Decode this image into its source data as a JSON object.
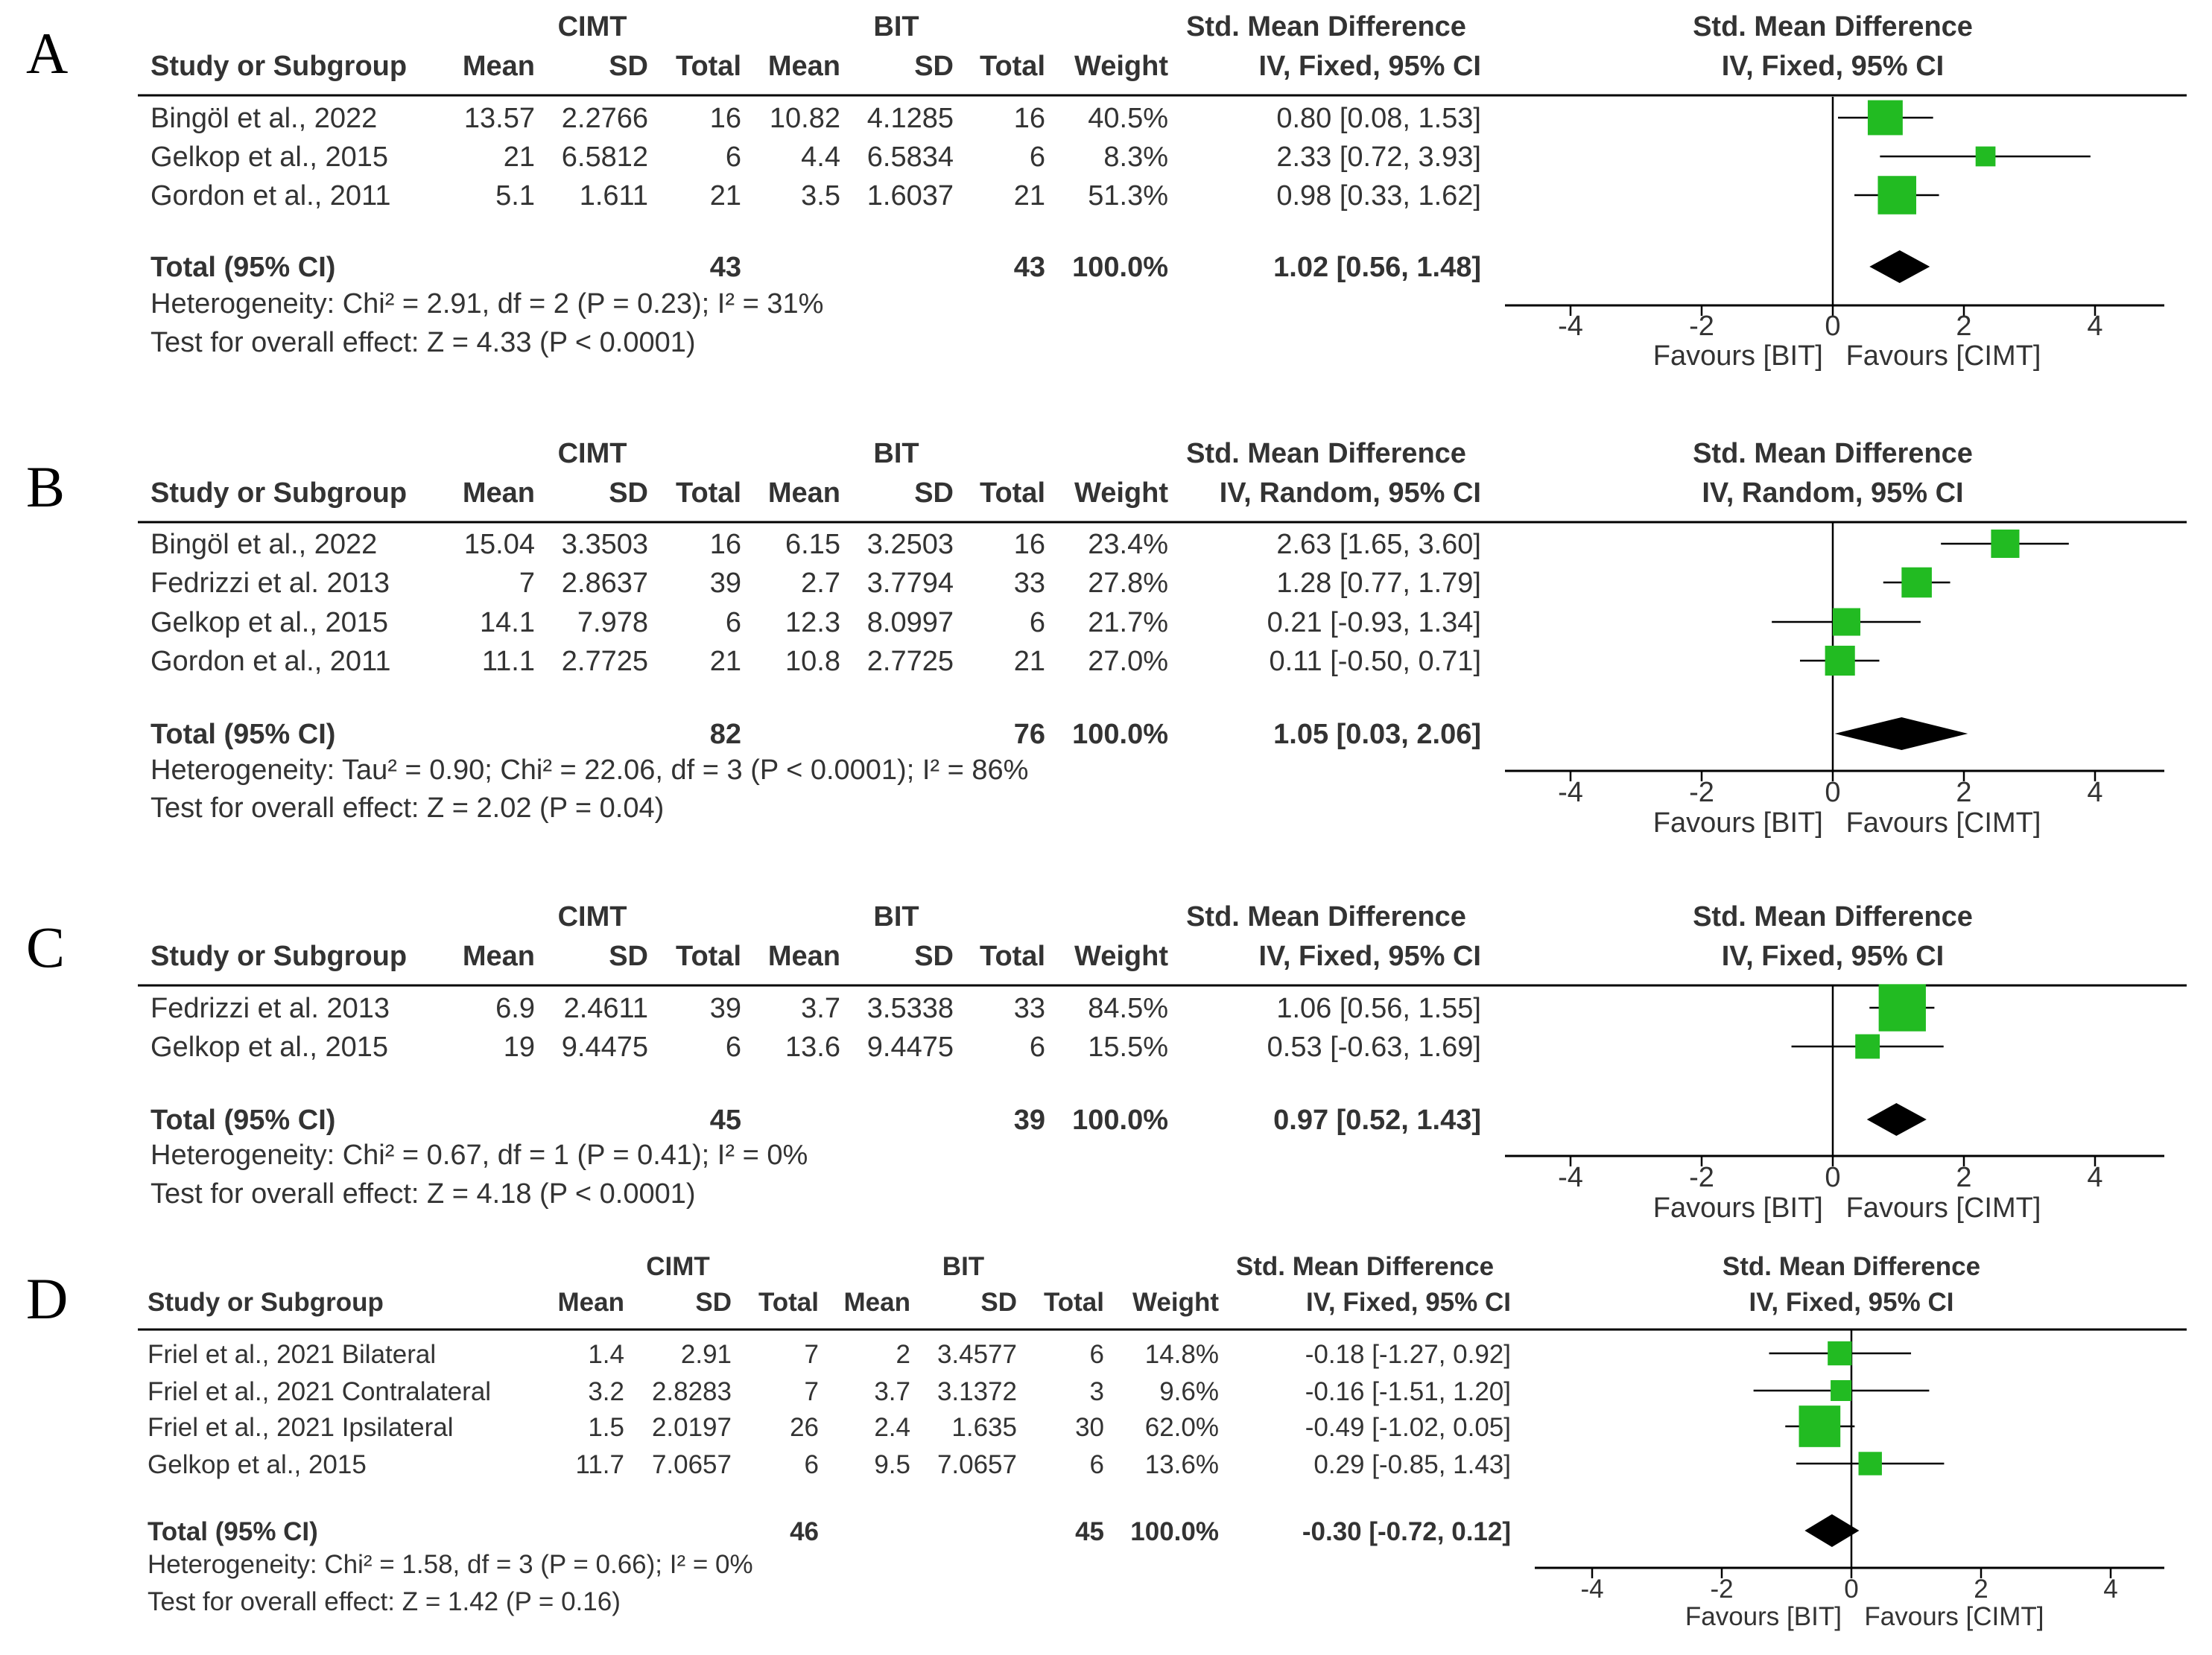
{
  "colors": {
    "text": "#333333",
    "square": "#22bb22",
    "diamond": "#000000",
    "axis": "#000000"
  },
  "headers": {
    "group1": "CIMT",
    "group2": "BIT",
    "effect": "Std. Mean Difference",
    "study": "Study or Subgroup",
    "mean": "Mean",
    "sd": "SD",
    "total": "Total",
    "weight": "Weight"
  },
  "chart_data": [
    {
      "type": "forest",
      "panel": "A",
      "method": "IV, Fixed, 95% CI",
      "studies": [
        {
          "name": "Bingöl et al., 2022",
          "m1": "13.57",
          "sd1": "2.2766",
          "n1": "16",
          "m2": "10.82",
          "sd2": "4.1285",
          "n2": "16",
          "weight": "40.5%",
          "ci_text": "0.80 [0.08, 1.53]",
          "est": 0.8,
          "lo": 0.08,
          "hi": 1.53,
          "w": 40.5
        },
        {
          "name": "Gelkop et al., 2015",
          "m1": "21",
          "sd1": "6.5812",
          "n1": "6",
          "m2": "4.4",
          "sd2": "6.5834",
          "n2": "6",
          "weight": "8.3%",
          "ci_text": "2.33 [0.72, 3.93]",
          "est": 2.33,
          "lo": 0.72,
          "hi": 3.93,
          "w": 8.3
        },
        {
          "name": "Gordon et al., 2011",
          "m1": "5.1",
          "sd1": "1.611",
          "n1": "21",
          "m2": "3.5",
          "sd2": "1.6037",
          "n2": "21",
          "weight": "51.3%",
          "ci_text": "0.98 [0.33, 1.62]",
          "est": 0.98,
          "lo": 0.33,
          "hi": 1.62,
          "w": 51.3
        }
      ],
      "total": {
        "label": "Total (95% CI)",
        "n1": "43",
        "n2": "43",
        "weight": "100.0%",
        "ci_text": "1.02 [0.56, 1.48]",
        "est": 1.02,
        "lo": 0.56,
        "hi": 1.48
      },
      "heterogeneity": "Heterogeneity: Chi² = 2.91, df = 2 (P = 0.23); I² = 31%",
      "overall": "Test for overall effect: Z = 4.33 (P < 0.0001)",
      "axis": {
        "xlim": [
          -5,
          5
        ],
        "ticks": [
          -4,
          -2,
          0,
          2,
          4
        ],
        "tick_labels": [
          "-4",
          "-2",
          "0",
          "2",
          "4"
        ]
      },
      "favours_left": "Favours [BIT]",
      "favours_right": "Favours [CIMT]"
    },
    {
      "type": "forest",
      "panel": "B",
      "method": "IV, Random, 95% CI",
      "studies": [
        {
          "name": "Bingöl et al., 2022",
          "m1": "15.04",
          "sd1": "3.3503",
          "n1": "16",
          "m2": "6.15",
          "sd2": "3.2503",
          "n2": "16",
          "weight": "23.4%",
          "ci_text": "2.63 [1.65, 3.60]",
          "est": 2.63,
          "lo": 1.65,
          "hi": 3.6,
          "w": 23.4
        },
        {
          "name": "Fedrizzi et al. 2013",
          "m1": "7",
          "sd1": "2.8637",
          "n1": "39",
          "m2": "2.7",
          "sd2": "3.7794",
          "n2": "33",
          "weight": "27.8%",
          "ci_text": "1.28 [0.77, 1.79]",
          "est": 1.28,
          "lo": 0.77,
          "hi": 1.79,
          "w": 27.8
        },
        {
          "name": "Gelkop et al., 2015",
          "m1": "14.1",
          "sd1": "7.978",
          "n1": "6",
          "m2": "12.3",
          "sd2": "8.0997",
          "n2": "6",
          "weight": "21.7%",
          "ci_text": "0.21 [-0.93, 1.34]",
          "est": 0.21,
          "lo": -0.93,
          "hi": 1.34,
          "w": 21.7
        },
        {
          "name": "Gordon et al., 2011",
          "m1": "11.1",
          "sd1": "2.7725",
          "n1": "21",
          "m2": "10.8",
          "sd2": "2.7725",
          "n2": "21",
          "weight": "27.0%",
          "ci_text": "0.11 [-0.50, 0.71]",
          "est": 0.11,
          "lo": -0.5,
          "hi": 0.71,
          "w": 27.0
        }
      ],
      "total": {
        "label": "Total (95% CI)",
        "n1": "82",
        "n2": "76",
        "weight": "100.0%",
        "ci_text": "1.05 [0.03, 2.06]",
        "est": 1.05,
        "lo": 0.03,
        "hi": 2.06
      },
      "heterogeneity": "Heterogeneity: Tau² = 0.90; Chi² = 22.06, df = 3 (P < 0.0001); I² = 86%",
      "overall": "Test for overall effect: Z = 2.02 (P = 0.04)",
      "axis": {
        "xlim": [
          -5,
          5
        ],
        "ticks": [
          -4,
          -2,
          0,
          2,
          4
        ],
        "tick_labels": [
          "-4",
          "-2",
          "0",
          "2",
          "4"
        ]
      },
      "favours_left": "Favours [BIT]",
      "favours_right": "Favours [CIMT]"
    },
    {
      "type": "forest",
      "panel": "C",
      "method": "IV, Fixed, 95% CI",
      "studies": [
        {
          "name": "Fedrizzi et al. 2013",
          "m1": "6.9",
          "sd1": "2.4611",
          "n1": "39",
          "m2": "3.7",
          "sd2": "3.5338",
          "n2": "33",
          "weight": "84.5%",
          "ci_text": "1.06 [0.56, 1.55]",
          "est": 1.06,
          "lo": 0.56,
          "hi": 1.55,
          "w": 84.5
        },
        {
          "name": "Gelkop et al., 2015",
          "m1": "19",
          "sd1": "9.4475",
          "n1": "6",
          "m2": "13.6",
          "sd2": "9.4475",
          "n2": "6",
          "weight": "15.5%",
          "ci_text": "0.53 [-0.63, 1.69]",
          "est": 0.53,
          "lo": -0.63,
          "hi": 1.69,
          "w": 15.5
        }
      ],
      "total": {
        "label": "Total (95% CI)",
        "n1": "45",
        "n2": "39",
        "weight": "100.0%",
        "ci_text": "0.97 [0.52, 1.43]",
        "est": 0.97,
        "lo": 0.52,
        "hi": 1.43
      },
      "heterogeneity": "Heterogeneity: Chi² = 0.67, df = 1 (P = 0.41); I² = 0%",
      "overall": "Test for overall effect: Z = 4.18 (P < 0.0001)",
      "axis": {
        "xlim": [
          -5,
          5
        ],
        "ticks": [
          -4,
          -2,
          0,
          2,
          4
        ],
        "tick_labels": [
          "-4",
          "-2",
          "0",
          "2",
          "4"
        ]
      },
      "favours_left": "Favours [BIT]",
      "favours_right": "Favours [CIMT]"
    },
    {
      "type": "forest",
      "panel": "D",
      "method": "IV, Fixed, 95% CI",
      "studies": [
        {
          "name": "Friel et al., 2021 Bilateral",
          "m1": "1.4",
          "sd1": "2.91",
          "n1": "7",
          "m2": "2",
          "sd2": "3.4577",
          "n2": "6",
          "weight": "14.8%",
          "ci_text": "-0.18 [-1.27, 0.92]",
          "est": -0.18,
          "lo": -1.27,
          "hi": 0.92,
          "w": 14.8
        },
        {
          "name": "Friel et al., 2021 Contralateral",
          "m1": "3.2",
          "sd1": "2.8283",
          "n1": "7",
          "m2": "3.7",
          "sd2": "3.1372",
          "n2": "3",
          "weight": "9.6%",
          "ci_text": "-0.16 [-1.51, 1.20]",
          "est": -0.16,
          "lo": -1.51,
          "hi": 1.2,
          "w": 9.6
        },
        {
          "name": "Friel et al., 2021 Ipsilateral",
          "m1": "1.5",
          "sd1": "2.0197",
          "n1": "26",
          "m2": "2.4",
          "sd2": "1.635",
          "n2": "30",
          "weight": "62.0%",
          "ci_text": "-0.49 [-1.02, 0.05]",
          "est": -0.49,
          "lo": -1.02,
          "hi": 0.05,
          "w": 62.0
        },
        {
          "name": "Gelkop et al., 2015",
          "m1": "11.7",
          "sd1": "7.0657",
          "n1": "6",
          "m2": "9.5",
          "sd2": "7.0657",
          "n2": "6",
          "weight": "13.6%",
          "ci_text": "0.29 [-0.85, 1.43]",
          "est": 0.29,
          "lo": -0.85,
          "hi": 1.43,
          "w": 13.6
        }
      ],
      "total": {
        "label": "Total (95% CI)",
        "n1": "46",
        "n2": "45",
        "weight": "100.0%",
        "ci_text": "-0.30 [-0.72, 0.12]",
        "est": -0.3,
        "lo": -0.72,
        "hi": 0.12
      },
      "heterogeneity": "Heterogeneity: Chi² = 1.58, df = 3 (P = 0.66); I² = 0%",
      "overall": "Test for overall effect: Z = 1.42 (P = 0.16)",
      "axis": {
        "xlim": [
          -5,
          5
        ],
        "ticks": [
          -4,
          -2,
          0,
          2,
          4
        ],
        "tick_labels": [
          "-4",
          "-2",
          "0",
          "2",
          "4"
        ]
      },
      "favours_left": "Favours [BIT]",
      "favours_right": "Favours [CIMT]"
    }
  ]
}
